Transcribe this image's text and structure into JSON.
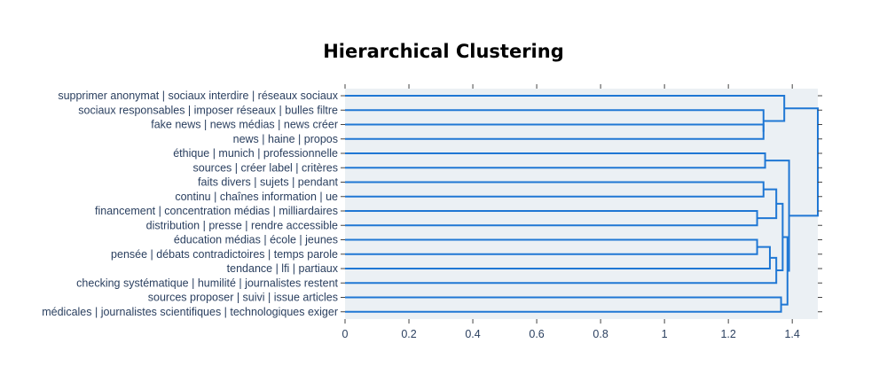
{
  "chart_data": {
    "type": "dendrogram",
    "title": "Hierarchical Clustering",
    "orientation": "horizontal",
    "xlim": [
      0,
      1.48
    ],
    "xticks": [
      "0",
      "0.2",
      "0.4",
      "0.6",
      "0.8",
      "1",
      "1.2",
      "1.4"
    ],
    "xtick_values": [
      0,
      0.2,
      0.4,
      0.6,
      0.8,
      1.0,
      1.2,
      1.4
    ],
    "grid": false,
    "colors": {
      "link": "#1f77d4",
      "plot_bg": "#ebf0f4",
      "label": "#2a3f5f",
      "axis": "#444444"
    },
    "leaves": [
      "supprimer anonymat | sociaux interdire | réseaux sociaux",
      "sociaux responsables | imposer réseaux | bulles filtre",
      "fake news | news médias | news créer",
      "news | haine | propos",
      "éthique | munich | professionnelle",
      "sources | créer label | critères",
      "faits divers | sujets | pendant",
      "continu | chaînes information | ue",
      "financement | concentration médias | milliardaires",
      "distribution | presse | rendre accessible",
      "éducation médias | école | jeunes",
      "pensée | débats contradictoires | temps parole",
      "tendance | lfi | partiaux",
      "checking systématique | humilité | journalistes restent",
      "sources proposer | suivi | issue articles",
      "médicales | journalistes scientifiques | technologiques exiger"
    ],
    "merges": [
      {
        "a": "L2",
        "b": "L3",
        "height": 1.31
      },
      {
        "a": "L1",
        "b": "M0",
        "height": 1.31
      },
      {
        "a": "L0",
        "b": "M1",
        "height": 1.375
      },
      {
        "a": "L4",
        "b": "L5",
        "height": 1.315
      },
      {
        "a": "L6",
        "b": "L7",
        "height": 1.31
      },
      {
        "a": "L8",
        "b": "L9",
        "height": 1.29
      },
      {
        "a": "M4",
        "b": "M5",
        "height": 1.35
      },
      {
        "a": "L10",
        "b": "L11",
        "height": 1.29
      },
      {
        "a": "M7",
        "b": "L12",
        "height": 1.33
      },
      {
        "a": "M8",
        "b": "L13",
        "height": 1.35
      },
      {
        "a": "M9",
        "b": "M6",
        "height": 1.37
      },
      {
        "a": "L14",
        "b": "L15",
        "height": 1.365
      },
      {
        "a": "M10",
        "b": "M11",
        "height": 1.385
      },
      {
        "a": "M3",
        "b": "M12",
        "height": 1.39
      },
      {
        "a": "M2",
        "b": "M13",
        "height": 1.48
      }
    ]
  }
}
